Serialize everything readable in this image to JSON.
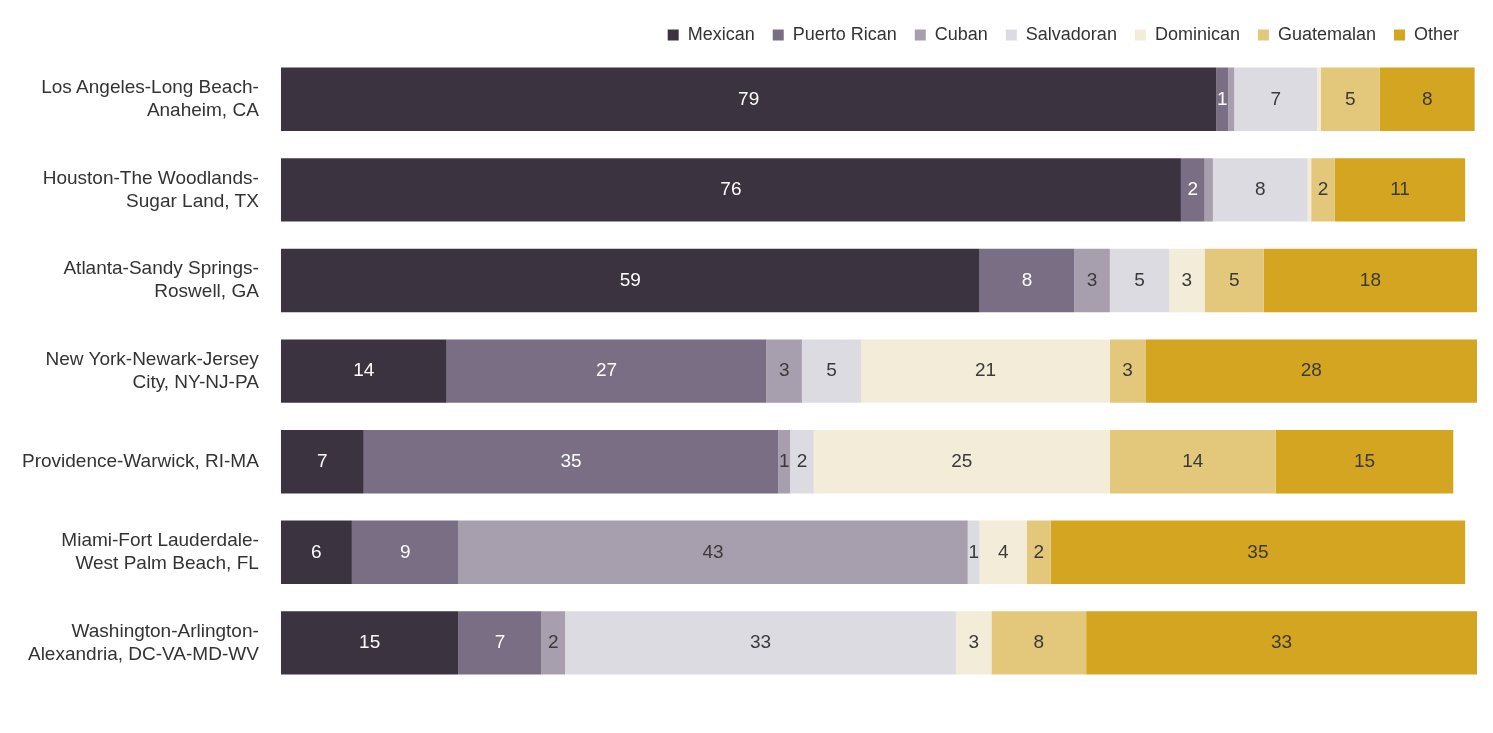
{
  "chart_data": {
    "type": "bar",
    "orientation": "horizontal",
    "stacked": true,
    "legend": "top right",
    "categories": [
      "Los Angeles-Long Beach-\nAnaheim, CA",
      "Houston-The Woodlands-\nSugar Land, TX",
      "Atlanta-Sandy Springs-\nRoswell, GA",
      "New York-Newark-Jersey\nCity, NY-NJ-PA",
      "Providence-Warwick, RI-MA",
      "Miami-Fort Lauderdale-\nWest Palm Beach, FL",
      "Washington-Arlington-\nAlexandria, DC-VA-MD-WV"
    ],
    "series": [
      {
        "name": "Mexican",
        "color": "#3b3440",
        "values": [
          79,
          76,
          59,
          14,
          7,
          6,
          15
        ],
        "value_labels": [
          "79",
          "76",
          "59",
          "14",
          "7",
          "6",
          "15"
        ]
      },
      {
        "name": "Puerto Rican",
        "color": "#7a6e84",
        "values": [
          1,
          2,
          8,
          27,
          35,
          9,
          7
        ],
        "value_labels": [
          "1",
          "2",
          "8",
          "27",
          "35",
          "9",
          "7"
        ]
      },
      {
        "name": "Cuban",
        "color": "#a89fae",
        "values": [
          0.5,
          0.7,
          3,
          3,
          1,
          43,
          2
        ],
        "value_labels": [
          null,
          null,
          "3",
          "3",
          "1",
          "43",
          "2"
        ]
      },
      {
        "name": "Salvadoran",
        "color": "#dddbe2",
        "values": [
          7,
          8,
          5,
          5,
          2,
          1,
          33
        ],
        "value_labels": [
          "7",
          "8",
          "5",
          "5",
          "2",
          "1",
          "33"
        ]
      },
      {
        "name": "Dominican",
        "color": "#f3ecd8",
        "values": [
          0.3,
          0.3,
          3,
          21,
          25,
          4,
          3
        ],
        "value_labels": [
          null,
          null,
          "3",
          "21",
          "25",
          "4",
          "3"
        ]
      },
      {
        "name": "Guatemalan",
        "color": "#e3c77a",
        "values": [
          5,
          2,
          5,
          3,
          14,
          2,
          8
        ],
        "value_labels": [
          "5",
          "2",
          "5",
          "3",
          "14",
          "2",
          "8"
        ]
      },
      {
        "name": "Other",
        "color": "#d4a520",
        "values": [
          8,
          11,
          18,
          28,
          15,
          35,
          33
        ],
        "value_labels": [
          "8",
          "11",
          "18",
          "28",
          "15",
          "35",
          "33"
        ]
      }
    ]
  }
}
